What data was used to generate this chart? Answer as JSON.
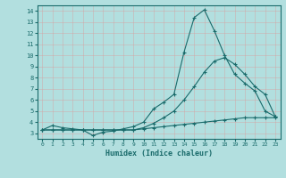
{
  "xlabel": "Humidex (Indice chaleur)",
  "background_color": "#b2dfdf",
  "grid_color": "#c8eaea",
  "line_color": "#1a6b6b",
  "xlim": [
    -0.5,
    23.5
  ],
  "ylim": [
    2.5,
    14.5
  ],
  "xticks": [
    0,
    1,
    2,
    3,
    4,
    5,
    6,
    7,
    8,
    9,
    10,
    11,
    12,
    13,
    14,
    15,
    16,
    17,
    18,
    19,
    20,
    21,
    22,
    23
  ],
  "yticks": [
    3,
    4,
    5,
    6,
    7,
    8,
    9,
    10,
    11,
    12,
    13,
    14
  ],
  "line1_x": [
    0,
    1,
    2,
    3,
    4,
    5,
    6,
    7,
    8,
    9,
    10,
    11,
    12,
    13,
    14,
    15,
    16,
    17,
    18,
    19,
    20,
    21,
    22,
    23
  ],
  "line1_y": [
    3.3,
    3.7,
    3.5,
    3.4,
    3.3,
    2.8,
    3.1,
    3.2,
    3.4,
    3.6,
    4.0,
    5.2,
    5.8,
    6.5,
    10.3,
    13.4,
    14.1,
    12.2,
    10.0,
    8.3,
    7.5,
    6.8,
    5.0,
    4.5
  ],
  "line2_x": [
    0,
    1,
    2,
    3,
    4,
    5,
    6,
    7,
    8,
    9,
    10,
    11,
    12,
    13,
    14,
    15,
    16,
    17,
    18,
    19,
    20,
    21,
    22,
    23
  ],
  "line2_y": [
    3.3,
    3.3,
    3.3,
    3.3,
    3.3,
    3.3,
    3.3,
    3.3,
    3.3,
    3.3,
    3.5,
    3.9,
    4.4,
    5.0,
    6.0,
    7.2,
    8.5,
    9.5,
    9.8,
    9.2,
    8.3,
    7.2,
    6.5,
    4.5
  ],
  "line3_x": [
    0,
    1,
    2,
    3,
    4,
    5,
    6,
    7,
    8,
    9,
    10,
    11,
    12,
    13,
    14,
    15,
    16,
    17,
    18,
    19,
    20,
    21,
    22,
    23
  ],
  "line3_y": [
    3.3,
    3.3,
    3.3,
    3.3,
    3.3,
    3.3,
    3.3,
    3.3,
    3.3,
    3.3,
    3.4,
    3.5,
    3.6,
    3.7,
    3.8,
    3.9,
    4.0,
    4.1,
    4.2,
    4.3,
    4.4,
    4.4,
    4.4,
    4.4
  ]
}
